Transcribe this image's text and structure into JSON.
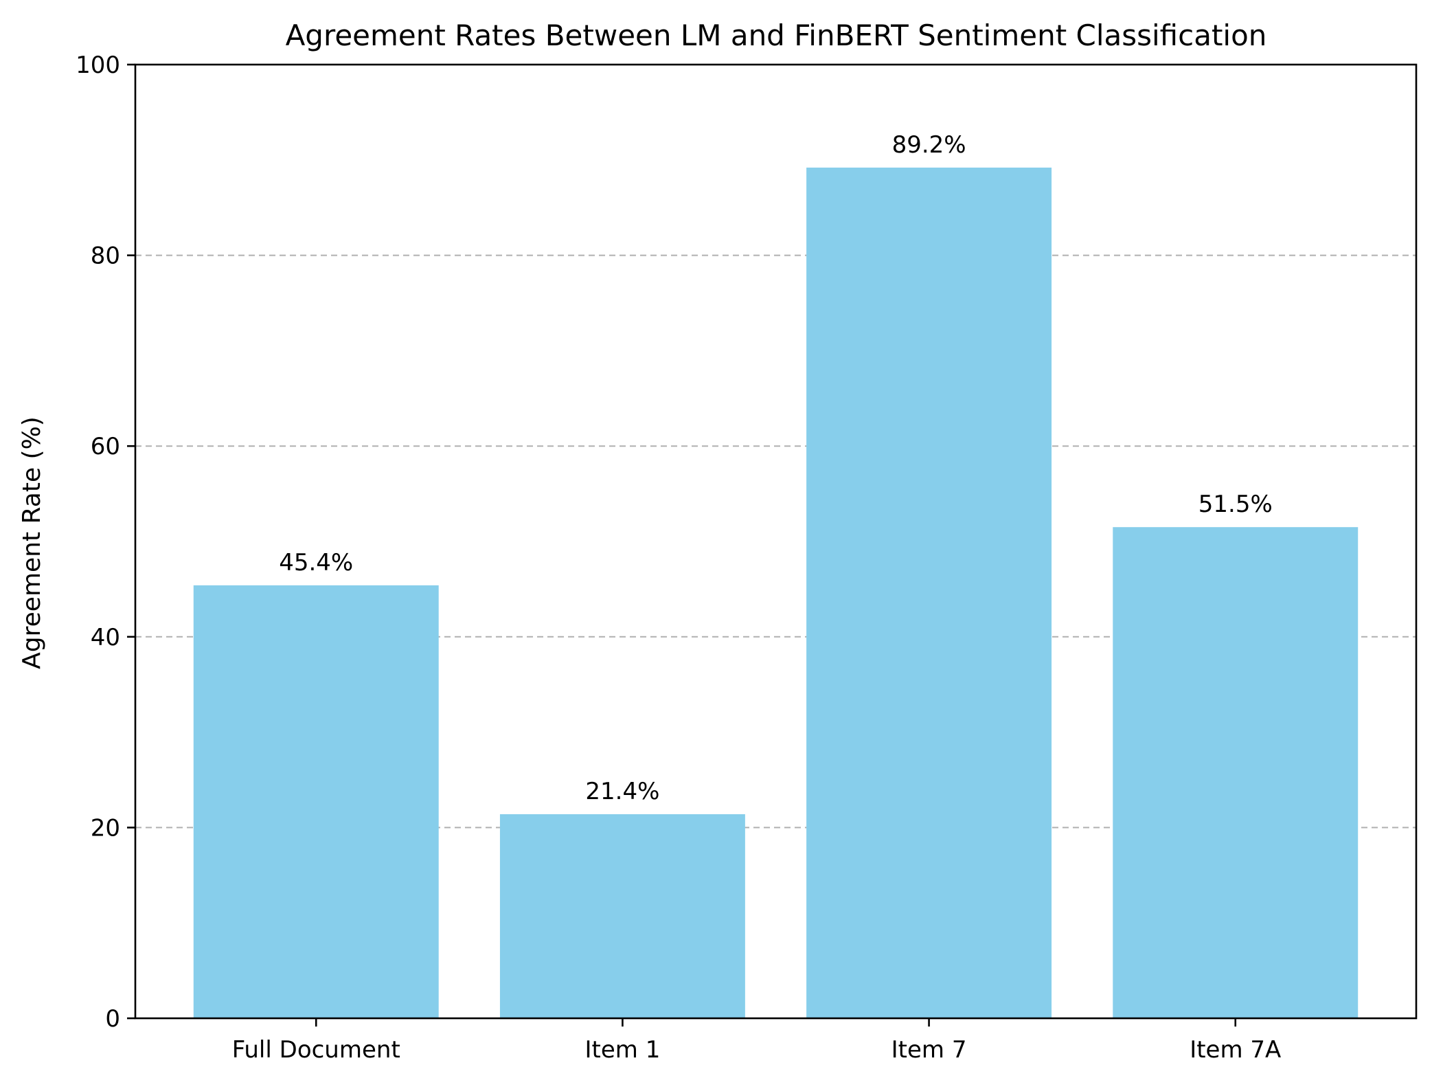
{
  "chart_data": {
    "type": "bar",
    "title": "Agreement Rates Between LM and FinBERT Sentiment Classification",
    "xlabel": "",
    "ylabel": "Agreement Rate (%)",
    "categories": [
      "Full Document",
      "Item 1",
      "Item 7",
      "Item 7A"
    ],
    "values": [
      45.4,
      21.4,
      89.2,
      51.5
    ],
    "data_labels": [
      "45.4%",
      "21.4%",
      "89.2%",
      "51.5%"
    ],
    "ylim": [
      0,
      100
    ],
    "yticks": [
      0,
      20,
      40,
      60,
      80,
      100
    ],
    "grid": "horizontal-dashed",
    "bar_color": "#87CEEB",
    "grid_color": "#b0b0b0",
    "legend": "none"
  }
}
